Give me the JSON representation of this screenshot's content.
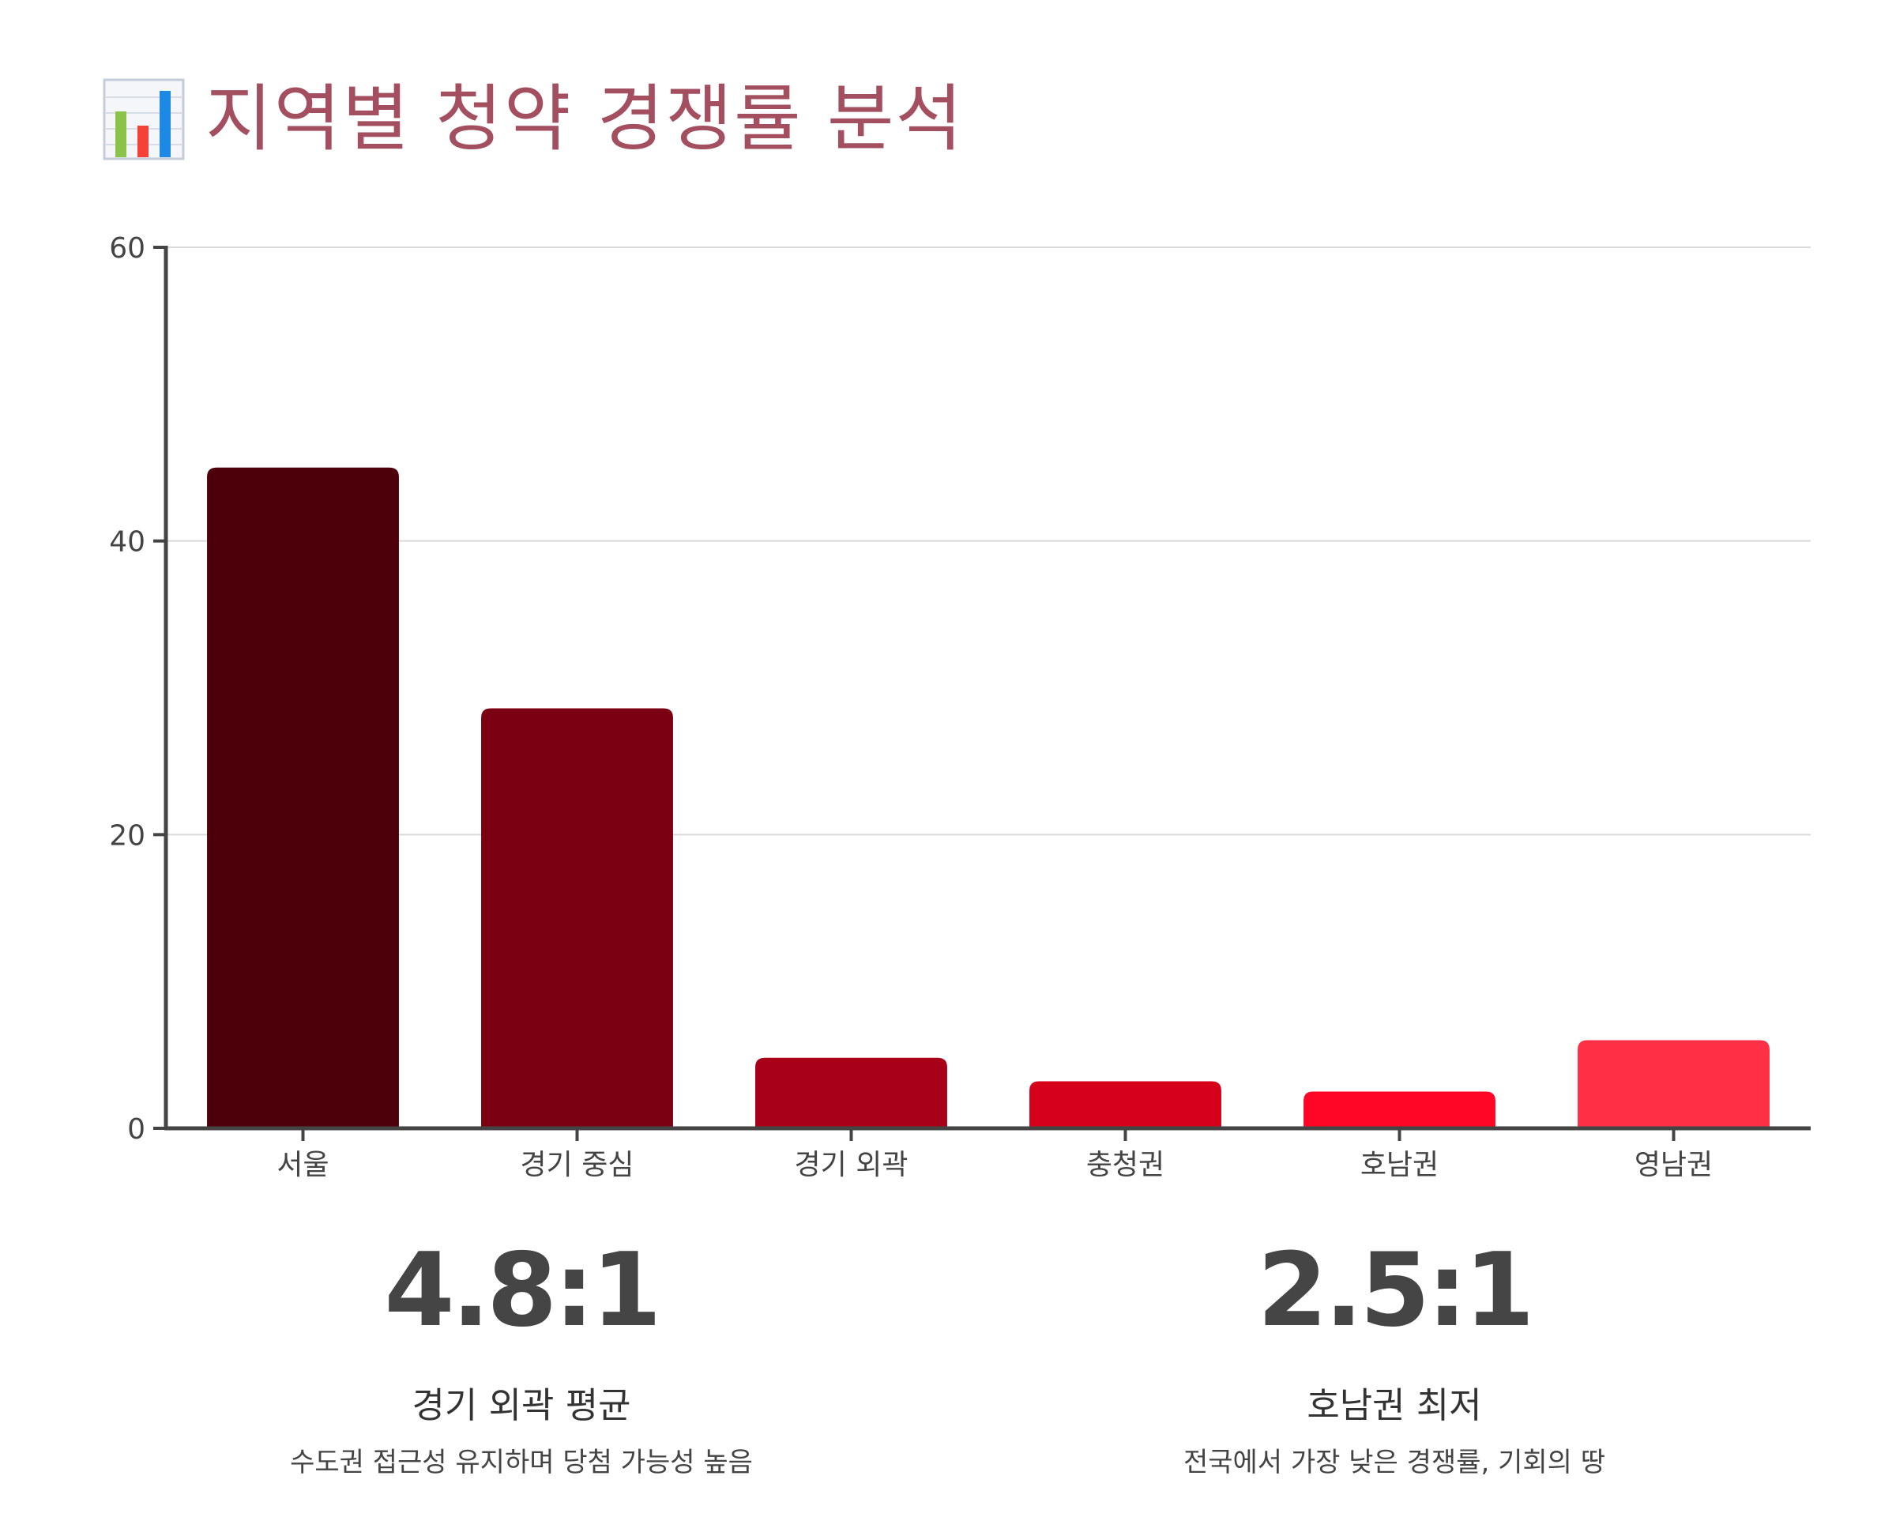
{
  "title": "지역별 청약 경쟁률 분석",
  "title_icon": "bar-chart-icon",
  "chart_data": {
    "type": "bar",
    "title": "",
    "xlabel": "",
    "ylabel": "",
    "categories": [
      "서울",
      "경기 중심",
      "경기 외곽",
      "충청권",
      "호남권",
      "영남권"
    ],
    "values": [
      45,
      28.6,
      4.8,
      3.2,
      2.5,
      6
    ],
    "ylim": [
      0,
      60
    ],
    "yticks": [
      0,
      20,
      40,
      60
    ],
    "grid": true,
    "legend": "none",
    "colors": [
      "#4e000a",
      "#7b0012",
      "#a80018",
      "#d6001b",
      "#ff0626",
      "#ff2f45"
    ]
  },
  "stats": [
    {
      "value": "4.8:1",
      "label": "경기 외곽 평균",
      "desc": "수도권 접근성 유지하며 당첨 가능성 높음"
    },
    {
      "value": "2.5:1",
      "label": "호남권 최저",
      "desc": "전국에서 가장 낮은 경쟁률, 기회의 땅"
    }
  ]
}
